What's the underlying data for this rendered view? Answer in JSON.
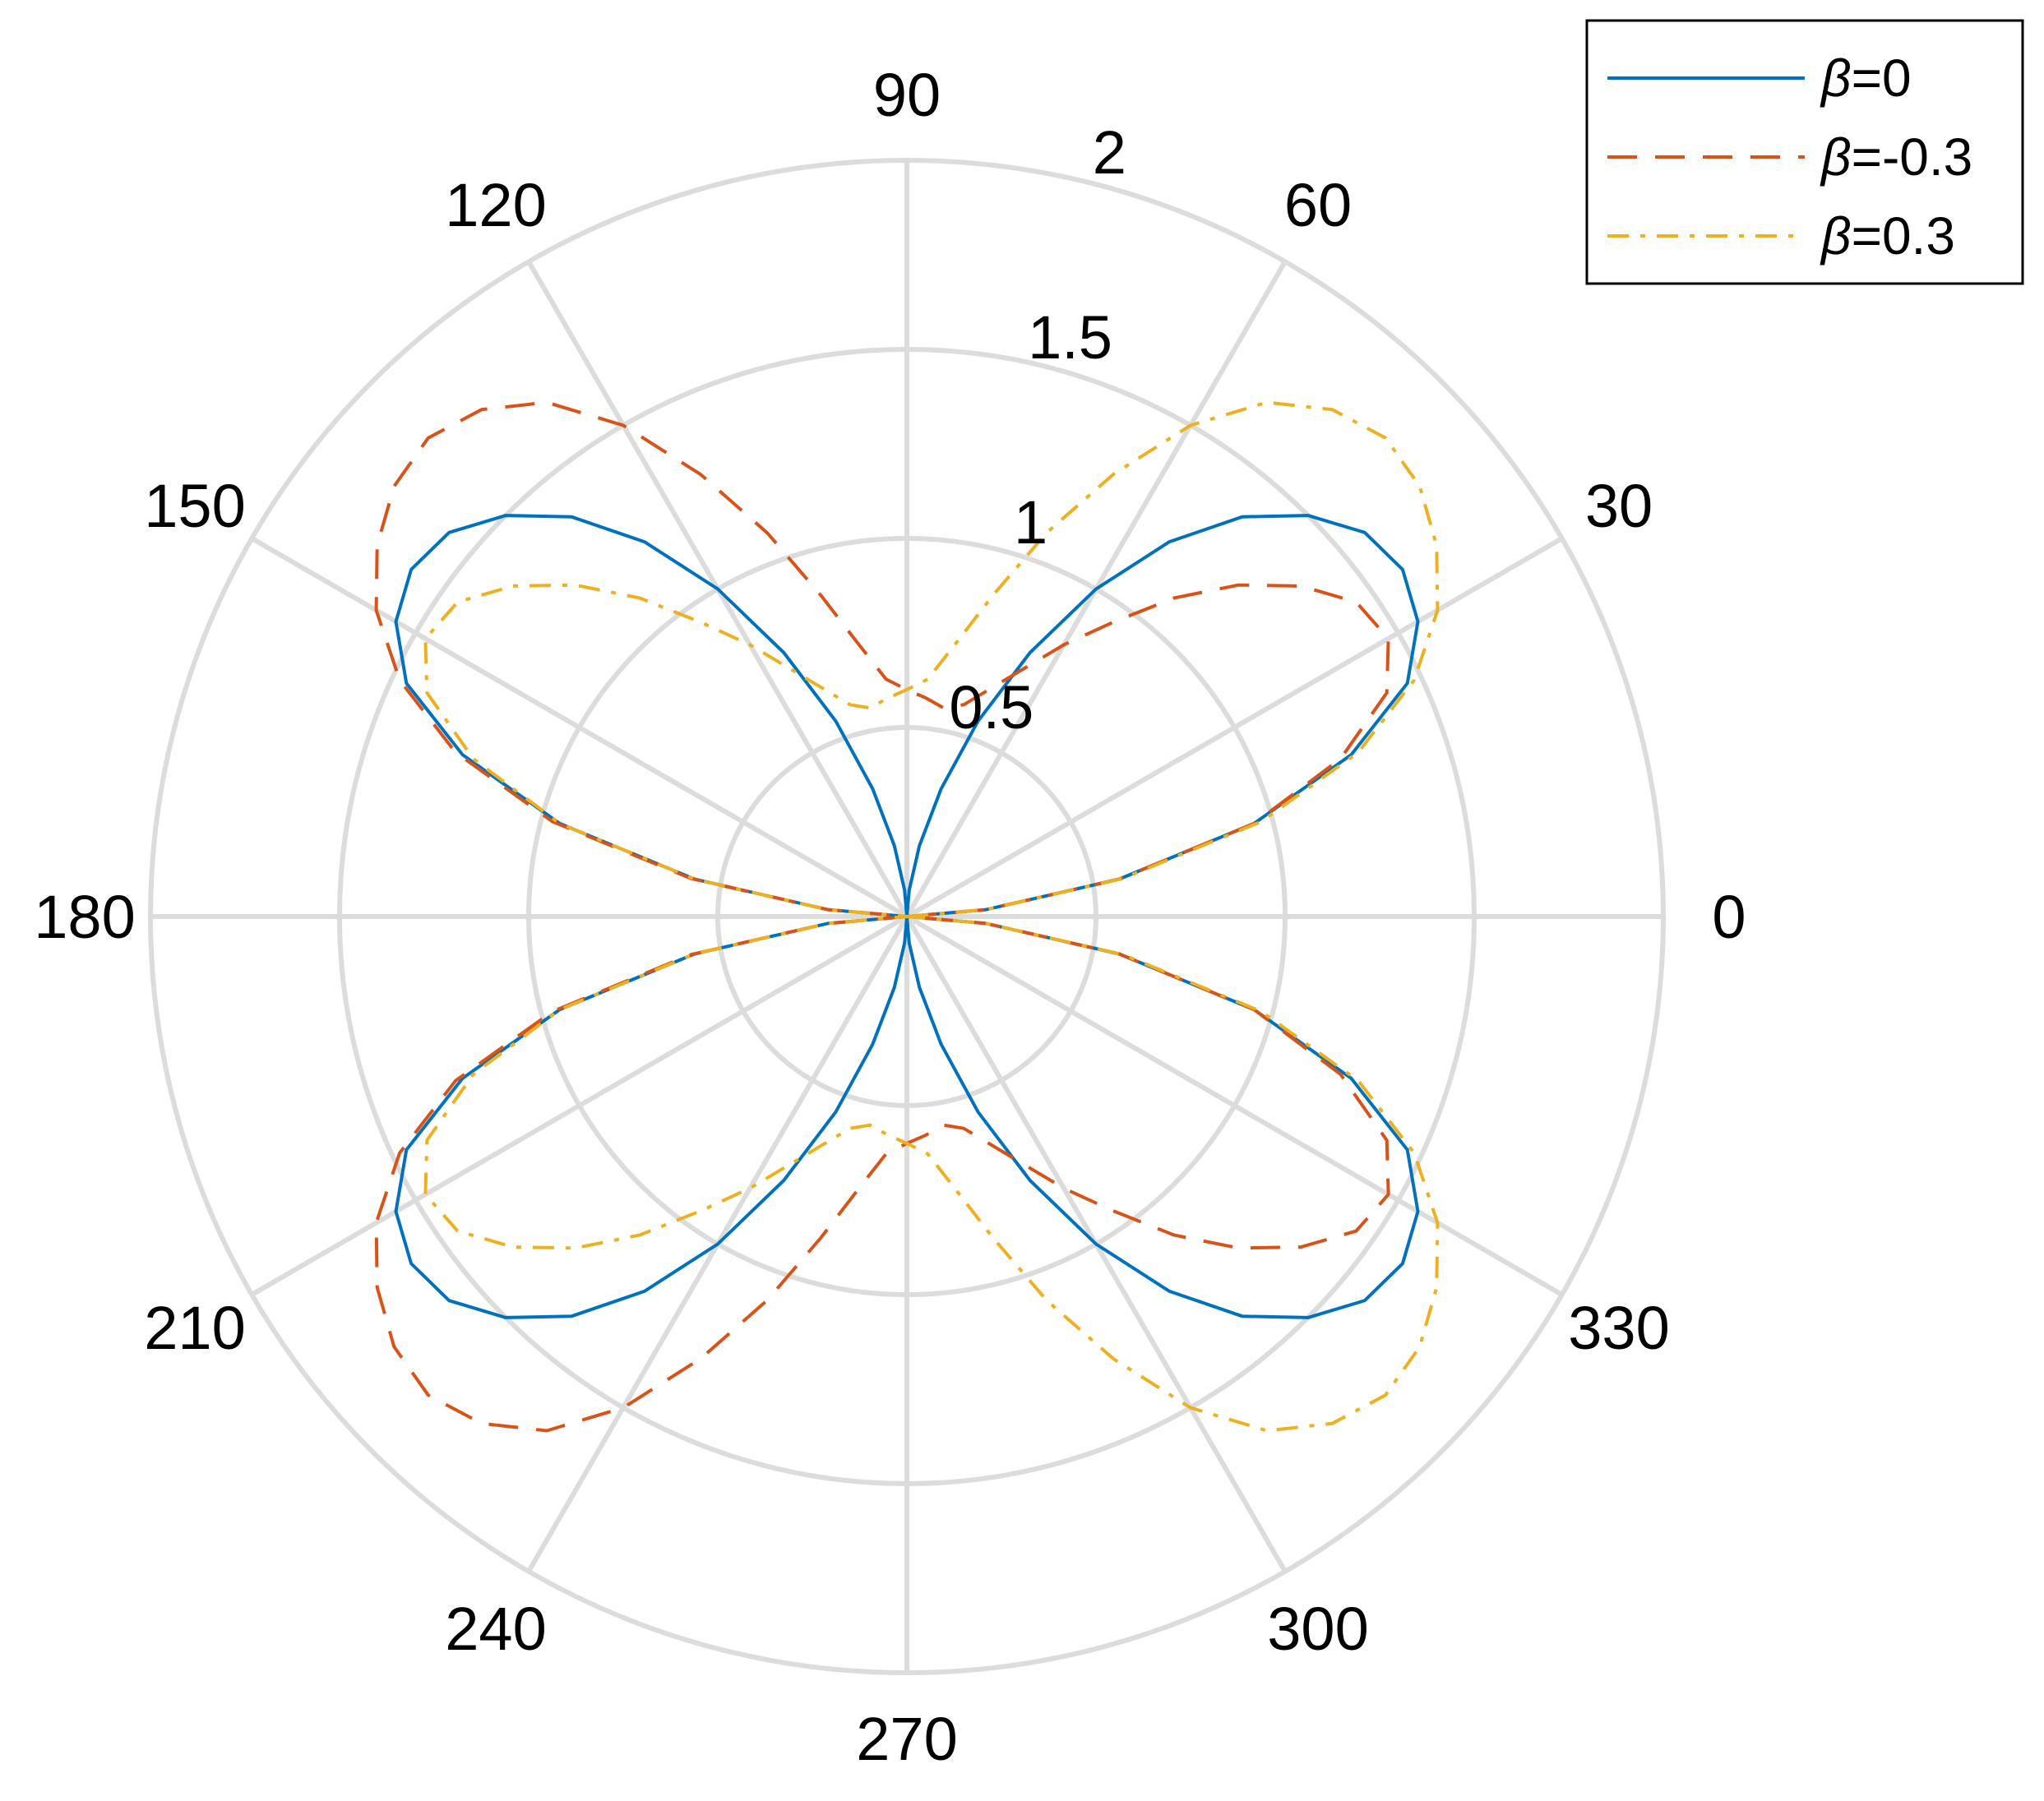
{
  "chart_data": {
    "type": "polar-line",
    "angle_unit": "degrees",
    "angular_ticks": [
      "0",
      "30",
      "60",
      "90",
      "120",
      "150",
      "180",
      "210",
      "240",
      "270",
      "300",
      "330"
    ],
    "radial_ticks": [
      0.5,
      1,
      1.5,
      2
    ],
    "radial_tick_labels": [
      "0.5",
      "1",
      "1.5",
      "2"
    ],
    "rlim": [
      0,
      2
    ],
    "grid": true,
    "legend_position": "top-right",
    "colors": {
      "grid": "#dcdcdc",
      "axis_text": "#000000",
      "legend_border": "#000000"
    },
    "series": [
      {
        "name": "β=0",
        "legend_symbol": "β",
        "legend_text": "=0",
        "color": "#0072BD",
        "style": "solid",
        "points": [
          [
            0,
            0
          ],
          [
            5,
            0.21
          ],
          [
            10,
            0.57
          ],
          [
            15,
            0.95
          ],
          [
            20,
            1.25
          ],
          [
            25,
            1.46
          ],
          [
            30,
            1.56
          ],
          [
            35,
            1.6
          ],
          [
            40,
            1.58
          ],
          [
            45,
            1.5
          ],
          [
            50,
            1.38
          ],
          [
            55,
            1.21
          ],
          [
            60,
            1.0
          ],
          [
            65,
            0.77
          ],
          [
            70,
            0.55
          ],
          [
            75,
            0.35
          ],
          [
            80,
            0.19
          ],
          [
            85,
            0.07
          ],
          [
            90,
            0
          ],
          [
            95,
            0.07
          ],
          [
            100,
            0.19
          ],
          [
            105,
            0.35
          ],
          [
            110,
            0.55
          ],
          [
            115,
            0.77
          ],
          [
            120,
            1.0
          ],
          [
            125,
            1.21
          ],
          [
            130,
            1.38
          ],
          [
            135,
            1.5
          ],
          [
            140,
            1.58
          ],
          [
            145,
            1.6
          ],
          [
            150,
            1.56
          ],
          [
            155,
            1.46
          ],
          [
            160,
            1.25
          ],
          [
            165,
            0.95
          ],
          [
            170,
            0.57
          ],
          [
            175,
            0.21
          ],
          [
            180,
            0
          ],
          [
            185,
            0.21
          ],
          [
            190,
            0.57
          ],
          [
            195,
            0.95
          ],
          [
            200,
            1.25
          ],
          [
            205,
            1.46
          ],
          [
            210,
            1.56
          ],
          [
            215,
            1.6
          ],
          [
            220,
            1.58
          ],
          [
            225,
            1.5
          ],
          [
            230,
            1.38
          ],
          [
            235,
            1.21
          ],
          [
            240,
            1.0
          ],
          [
            245,
            0.77
          ],
          [
            250,
            0.55
          ],
          [
            255,
            0.35
          ],
          [
            260,
            0.19
          ],
          [
            265,
            0.07
          ],
          [
            270,
            0
          ],
          [
            275,
            0.07
          ],
          [
            280,
            0.19
          ],
          [
            285,
            0.35
          ],
          [
            290,
            0.55
          ],
          [
            295,
            0.77
          ],
          [
            300,
            1.0
          ],
          [
            305,
            1.21
          ],
          [
            310,
            1.38
          ],
          [
            315,
            1.5
          ],
          [
            320,
            1.58
          ],
          [
            325,
            1.6
          ],
          [
            330,
            1.56
          ],
          [
            335,
            1.46
          ],
          [
            340,
            1.25
          ],
          [
            345,
            0.95
          ],
          [
            350,
            0.57
          ],
          [
            355,
            0.21
          ],
          [
            360,
            0
          ]
        ]
      },
      {
        "name": "β=-0.3",
        "legend_symbol": "β",
        "legend_text": "=-0.3",
        "color": "#D95319",
        "style": "dashed",
        "points": [
          [
            0,
            0
          ],
          [
            5,
            0.21
          ],
          [
            10,
            0.57
          ],
          [
            15,
            0.95
          ],
          [
            20,
            1.22
          ],
          [
            25,
            1.4
          ],
          [
            30,
            1.47
          ],
          [
            35,
            1.45
          ],
          [
            40,
            1.36
          ],
          [
            45,
            1.24
          ],
          [
            50,
            1.1
          ],
          [
            55,
            0.95
          ],
          [
            60,
            0.83
          ],
          [
            65,
            0.72
          ],
          [
            70,
            0.64
          ],
          [
            75,
            0.58
          ],
          [
            80,
            0.56
          ],
          [
            85,
            0.58
          ],
          [
            90,
            0.6
          ],
          [
            95,
            0.63
          ],
          [
            100,
            0.73
          ],
          [
            105,
            0.88
          ],
          [
            110,
            1.08
          ],
          [
            115,
            1.29
          ],
          [
            120,
            1.5
          ],
          [
            125,
            1.66
          ],
          [
            130,
            1.75
          ],
          [
            135,
            1.79
          ],
          [
            140,
            1.77
          ],
          [
            145,
            1.71
          ],
          [
            150,
            1.62
          ],
          [
            155,
            1.48
          ],
          [
            160,
            1.27
          ],
          [
            165,
            0.97
          ],
          [
            170,
            0.58
          ],
          [
            175,
            0.21
          ],
          [
            180,
            0
          ],
          [
            185,
            0.21
          ],
          [
            190,
            0.58
          ],
          [
            195,
            0.97
          ],
          [
            200,
            1.27
          ],
          [
            205,
            1.48
          ],
          [
            210,
            1.62
          ],
          [
            215,
            1.71
          ],
          [
            220,
            1.77
          ],
          [
            225,
            1.79
          ],
          [
            230,
            1.75
          ],
          [
            235,
            1.66
          ],
          [
            240,
            1.5
          ],
          [
            245,
            1.29
          ],
          [
            250,
            1.08
          ],
          [
            255,
            0.88
          ],
          [
            260,
            0.73
          ],
          [
            265,
            0.63
          ],
          [
            270,
            0.6
          ],
          [
            275,
            0.58
          ],
          [
            280,
            0.56
          ],
          [
            285,
            0.58
          ],
          [
            290,
            0.64
          ],
          [
            295,
            0.72
          ],
          [
            300,
            0.83
          ],
          [
            305,
            0.95
          ],
          [
            310,
            1.1
          ],
          [
            315,
            1.24
          ],
          [
            320,
            1.36
          ],
          [
            325,
            1.45
          ],
          [
            330,
            1.47
          ],
          [
            335,
            1.4
          ],
          [
            340,
            1.22
          ],
          [
            345,
            0.95
          ],
          [
            350,
            0.57
          ],
          [
            355,
            0.21
          ],
          [
            360,
            0
          ]
        ]
      },
      {
        "name": "β=0.3",
        "legend_symbol": "β",
        "legend_text": "=0.3",
        "color": "#EDB120",
        "style": "dashdot",
        "points": [
          [
            0,
            0
          ],
          [
            5,
            0.21
          ],
          [
            10,
            0.58
          ],
          [
            15,
            0.97
          ],
          [
            20,
            1.27
          ],
          [
            25,
            1.48
          ],
          [
            30,
            1.62
          ],
          [
            35,
            1.71
          ],
          [
            40,
            1.77
          ],
          [
            45,
            1.79
          ],
          [
            50,
            1.75
          ],
          [
            55,
            1.66
          ],
          [
            60,
            1.5
          ],
          [
            65,
            1.29
          ],
          [
            70,
            1.08
          ],
          [
            75,
            0.88
          ],
          [
            80,
            0.73
          ],
          [
            85,
            0.63
          ],
          [
            90,
            0.6
          ],
          [
            95,
            0.58
          ],
          [
            100,
            0.56
          ],
          [
            105,
            0.58
          ],
          [
            110,
            0.64
          ],
          [
            115,
            0.72
          ],
          [
            120,
            0.83
          ],
          [
            125,
            0.95
          ],
          [
            130,
            1.1
          ],
          [
            135,
            1.24
          ],
          [
            140,
            1.36
          ],
          [
            145,
            1.45
          ],
          [
            150,
            1.47
          ],
          [
            155,
            1.4
          ],
          [
            160,
            1.22
          ],
          [
            165,
            0.95
          ],
          [
            170,
            0.57
          ],
          [
            175,
            0.21
          ],
          [
            180,
            0
          ],
          [
            185,
            0.21
          ],
          [
            190,
            0.57
          ],
          [
            195,
            0.95
          ],
          [
            200,
            1.22
          ],
          [
            205,
            1.4
          ],
          [
            210,
            1.47
          ],
          [
            215,
            1.45
          ],
          [
            220,
            1.36
          ],
          [
            225,
            1.24
          ],
          [
            230,
            1.1
          ],
          [
            235,
            0.95
          ],
          [
            240,
            0.83
          ],
          [
            245,
            0.72
          ],
          [
            250,
            0.64
          ],
          [
            255,
            0.58
          ],
          [
            260,
            0.56
          ],
          [
            265,
            0.58
          ],
          [
            270,
            0.6
          ],
          [
            275,
            0.63
          ],
          [
            280,
            0.73
          ],
          [
            285,
            0.88
          ],
          [
            290,
            1.08
          ],
          [
            295,
            1.29
          ],
          [
            300,
            1.5
          ],
          [
            305,
            1.66
          ],
          [
            310,
            1.75
          ],
          [
            315,
            1.79
          ],
          [
            320,
            1.77
          ],
          [
            325,
            1.71
          ],
          [
            330,
            1.62
          ],
          [
            335,
            1.48
          ],
          [
            340,
            1.27
          ],
          [
            345,
            0.97
          ],
          [
            350,
            0.58
          ],
          [
            355,
            0.21
          ],
          [
            360,
            0
          ]
        ]
      }
    ]
  }
}
